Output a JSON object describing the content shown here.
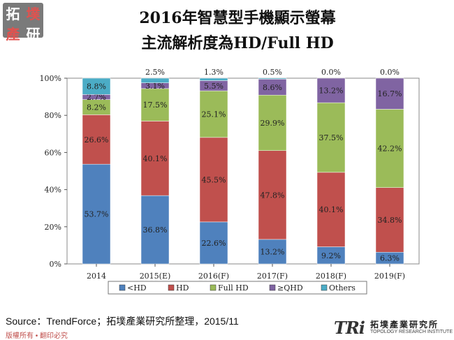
{
  "logo": {
    "chars": [
      "拓",
      "墣",
      "產",
      "研"
    ]
  },
  "title": {
    "line1": "2016年智慧型手機顯示螢幕",
    "line2": "主流解析度為HD/Full HD"
  },
  "chart_data": {
    "type": "bar",
    "stacked": true,
    "categories": [
      "2014",
      "2015(E)",
      "2016(F)",
      "2017(F)",
      "2018(F)",
      "2019(F)"
    ],
    "ylim": [
      0,
      100
    ],
    "yticks": [
      "0%",
      "20%",
      "40%",
      "60%",
      "80%",
      "100%"
    ],
    "series": [
      {
        "name": "<HD",
        "color": "#4f81bd",
        "values": [
          53.7,
          36.8,
          22.6,
          13.2,
          9.2,
          6.3
        ],
        "labels": [
          "53.7%",
          "36.8%",
          "22.6%",
          "13.2%",
          "9.2%",
          "6.3%"
        ]
      },
      {
        "name": "HD",
        "color": "#c0504d",
        "values": [
          26.6,
          40.1,
          45.5,
          47.8,
          40.1,
          34.8
        ],
        "labels": [
          "26.6%",
          "40.1%",
          "45.5%",
          "47.8%",
          "40.1%",
          "34.8%"
        ]
      },
      {
        "name": "Full HD",
        "color": "#9bbb59",
        "values": [
          8.2,
          17.5,
          25.1,
          29.9,
          37.5,
          42.2
        ],
        "labels": [
          "8.2%",
          "17.5%",
          "25.1%",
          "29.9%",
          "37.5%",
          "42.2%"
        ]
      },
      {
        "name": "≥QHD",
        "color": "#8064a2",
        "values": [
          2.7,
          3.1,
          5.5,
          8.6,
          13.2,
          16.7
        ],
        "labels": [
          "2.7%",
          "3.1%",
          "5.5%",
          "8.6%",
          "13.2%",
          "16.7%"
        ]
      },
      {
        "name": "Others",
        "color": "#4bacc6",
        "values": [
          8.8,
          2.5,
          1.3,
          0.5,
          0.0,
          0.0
        ],
        "labels": [
          "8.8%",
          "2.5%",
          "1.3%",
          "0.5%",
          "0.0%",
          "0.0%"
        ]
      }
    ]
  },
  "footer": {
    "source": "Source：TrendForce；拓墣產業研究所整理，2015/11",
    "copyright": "版權所有 • 翻印必究",
    "brand": "TRi",
    "brand_name": "拓墣產業研究所",
    "brand_sub": "TOPOLOGY RESEARCH INSTITUTE"
  }
}
